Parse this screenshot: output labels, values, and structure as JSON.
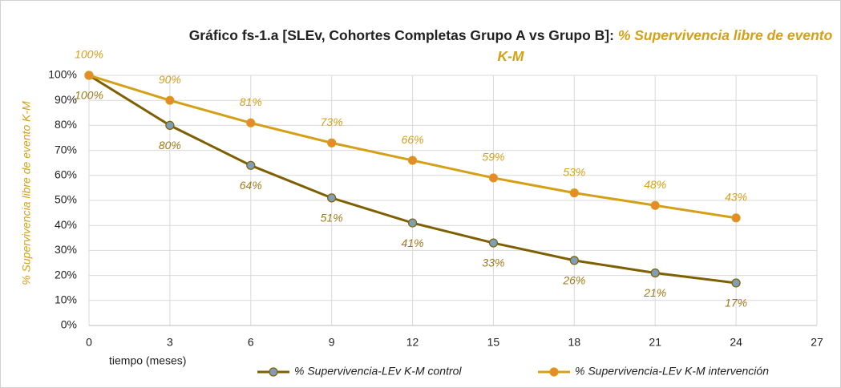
{
  "chart_data": {
    "type": "line",
    "title": "Gráfico fs-1.a [SLEv, Cohortes Completas Grupo A vs Grupo B]:",
    "title_emphasis": "% Supervivencia libre de evento K-M",
    "title_emphasis_color": "#d4a017",
    "y_label": "% Supervivencia libre de evento K-M",
    "y_label_color": "#d4a017",
    "x_label": "tiempo (meses)",
    "x": [
      0,
      3,
      6,
      9,
      12,
      15,
      18,
      21,
      24
    ],
    "series": [
      {
        "name": "% Supervivencia-LEv K-M control",
        "color": "#7f6000",
        "marker_color": "#7f9fb8",
        "label_color": "#9c7a1a",
        "label_side": "below",
        "values": [
          100,
          80,
          64,
          51,
          41,
          33,
          26,
          21,
          17
        ],
        "value_labels": [
          "100%",
          "80%",
          "64%",
          "51%",
          "41%",
          "33%",
          "26%",
          "21%",
          "17%"
        ]
      },
      {
        "name": "% Supervivencia-LEv K-M intervención",
        "color": "#d4a017",
        "marker_color": "#e8892b",
        "label_color": "#d4a017",
        "label_side": "above",
        "values": [
          100,
          90,
          81,
          73,
          66,
          59,
          53,
          48,
          43
        ],
        "value_labels": [
          "100%",
          "90%",
          "81%",
          "73%",
          "66%",
          "59%",
          "53%",
          "48%",
          "43%"
        ]
      }
    ],
    "xlim": [
      0,
      27
    ],
    "xticks": [
      0,
      3,
      6,
      9,
      12,
      15,
      18,
      21,
      24,
      27
    ],
    "ylim": [
      0,
      100
    ],
    "yticks": [
      {
        "value": 0,
        "label": "0%"
      },
      {
        "value": 10,
        "label": "10%"
      },
      {
        "value": 20,
        "label": "20%"
      },
      {
        "value": 30,
        "label": "30%"
      },
      {
        "value": 40,
        "label": "40%"
      },
      {
        "value": 50,
        "label": "50%"
      },
      {
        "value": 60,
        "label": "60%"
      },
      {
        "value": 70,
        "label": "70%"
      },
      {
        "value": 80,
        "label": "80%"
      },
      {
        "value": 90,
        "label": "90%"
      },
      {
        "value": 100,
        "label": "100%"
      }
    ],
    "grid": true,
    "legend": "bottom"
  }
}
